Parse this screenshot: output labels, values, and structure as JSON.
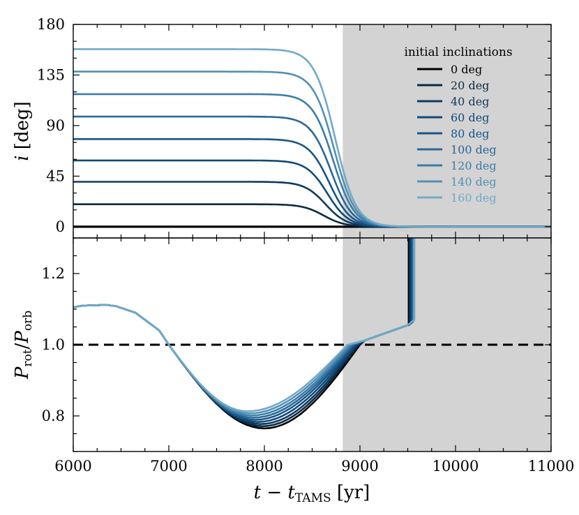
{
  "chart_data": [
    {
      "type": "line",
      "panel": "top",
      "ylabel_symbol": "i",
      "ylabel_unit": "[deg]",
      "xlim": [
        6000,
        11000
      ],
      "ylim": [
        -10,
        180
      ],
      "yticks": [
        0,
        45,
        90,
        135,
        180
      ],
      "shaded_region": [
        8820,
        11000
      ],
      "legend": {
        "title": "initial inclinations",
        "placement": "top-right"
      },
      "series": [
        {
          "name": "0 deg",
          "initial": 0,
          "color": "#000000"
        },
        {
          "name": "20 deg",
          "initial": 20,
          "color": "#0a2a42"
        },
        {
          "name": "40 deg",
          "initial": 40,
          "color": "#0d3a5f"
        },
        {
          "name": "60 deg",
          "initial": 60,
          "color": "#0f4a78"
        },
        {
          "name": "80 deg",
          "initial": 80,
          "color": "#17558a"
        },
        {
          "name": "100 deg",
          "initial": 100,
          "color": "#2a6796"
        },
        {
          "name": "120 deg",
          "initial": 120,
          "color": "#3b7da6"
        },
        {
          "name": "140 deg",
          "initial": 140,
          "color": "#5290b5"
        },
        {
          "name": "160 deg",
          "initial": 160,
          "color": "#70a9c7"
        }
      ],
      "start_values": [
        0,
        20,
        40,
        59,
        78,
        98,
        118,
        138,
        158
      ],
      "decay_midpoint": [
        8600,
        8620,
        8640,
        8660,
        8680,
        8700,
        8720,
        8730,
        8740
      ]
    },
    {
      "type": "line",
      "panel": "bottom",
      "ylabel_num": "P",
      "ylabel_num_sub": "rot",
      "ylabel_den": "P",
      "ylabel_den_sub": "orb",
      "xlabel_main": "t − t",
      "xlabel_sub": "TAMS",
      "xlabel_unit": "[yr]",
      "xlim": [
        6000,
        11000
      ],
      "ylim": [
        0.7,
        1.3
      ],
      "yticks": [
        "0.8",
        "1.0",
        "1.2"
      ],
      "xticks": [
        "6000",
        "7000",
        "8000",
        "9000",
        "10000",
        "11000"
      ],
      "reference_line": 1.0,
      "shaded_region": [
        8820,
        11000
      ],
      "common_points": [
        [
          6000,
          1.105
        ],
        [
          6100,
          1.11
        ],
        [
          6350,
          1.112
        ],
        [
          6450,
          1.108
        ],
        [
          6650,
          1.09
        ],
        [
          6900,
          1.04
        ],
        [
          7000,
          1.0
        ]
      ],
      "minimum_curves": {
        "x_min": [
          8000,
          7980,
          7960,
          7930,
          7900,
          7880,
          7860,
          7840,
          7820
        ],
        "y_min": [
          0.765,
          0.771,
          0.777,
          0.783,
          0.789,
          0.795,
          0.801,
          0.807,
          0.813
        ],
        "x_cross": [
          9000,
          8985,
          8970,
          8955,
          8940,
          8925,
          8910,
          8890,
          8870
        ]
      },
      "tail_points": [
        [
          9050,
          1.012
        ],
        [
          9500,
          1.055
        ]
      ],
      "jump_x": [
        9510,
        9520,
        9530,
        9540,
        9550,
        9555,
        9560,
        9565,
        9570
      ],
      "jump_to": 1.3
    }
  ]
}
